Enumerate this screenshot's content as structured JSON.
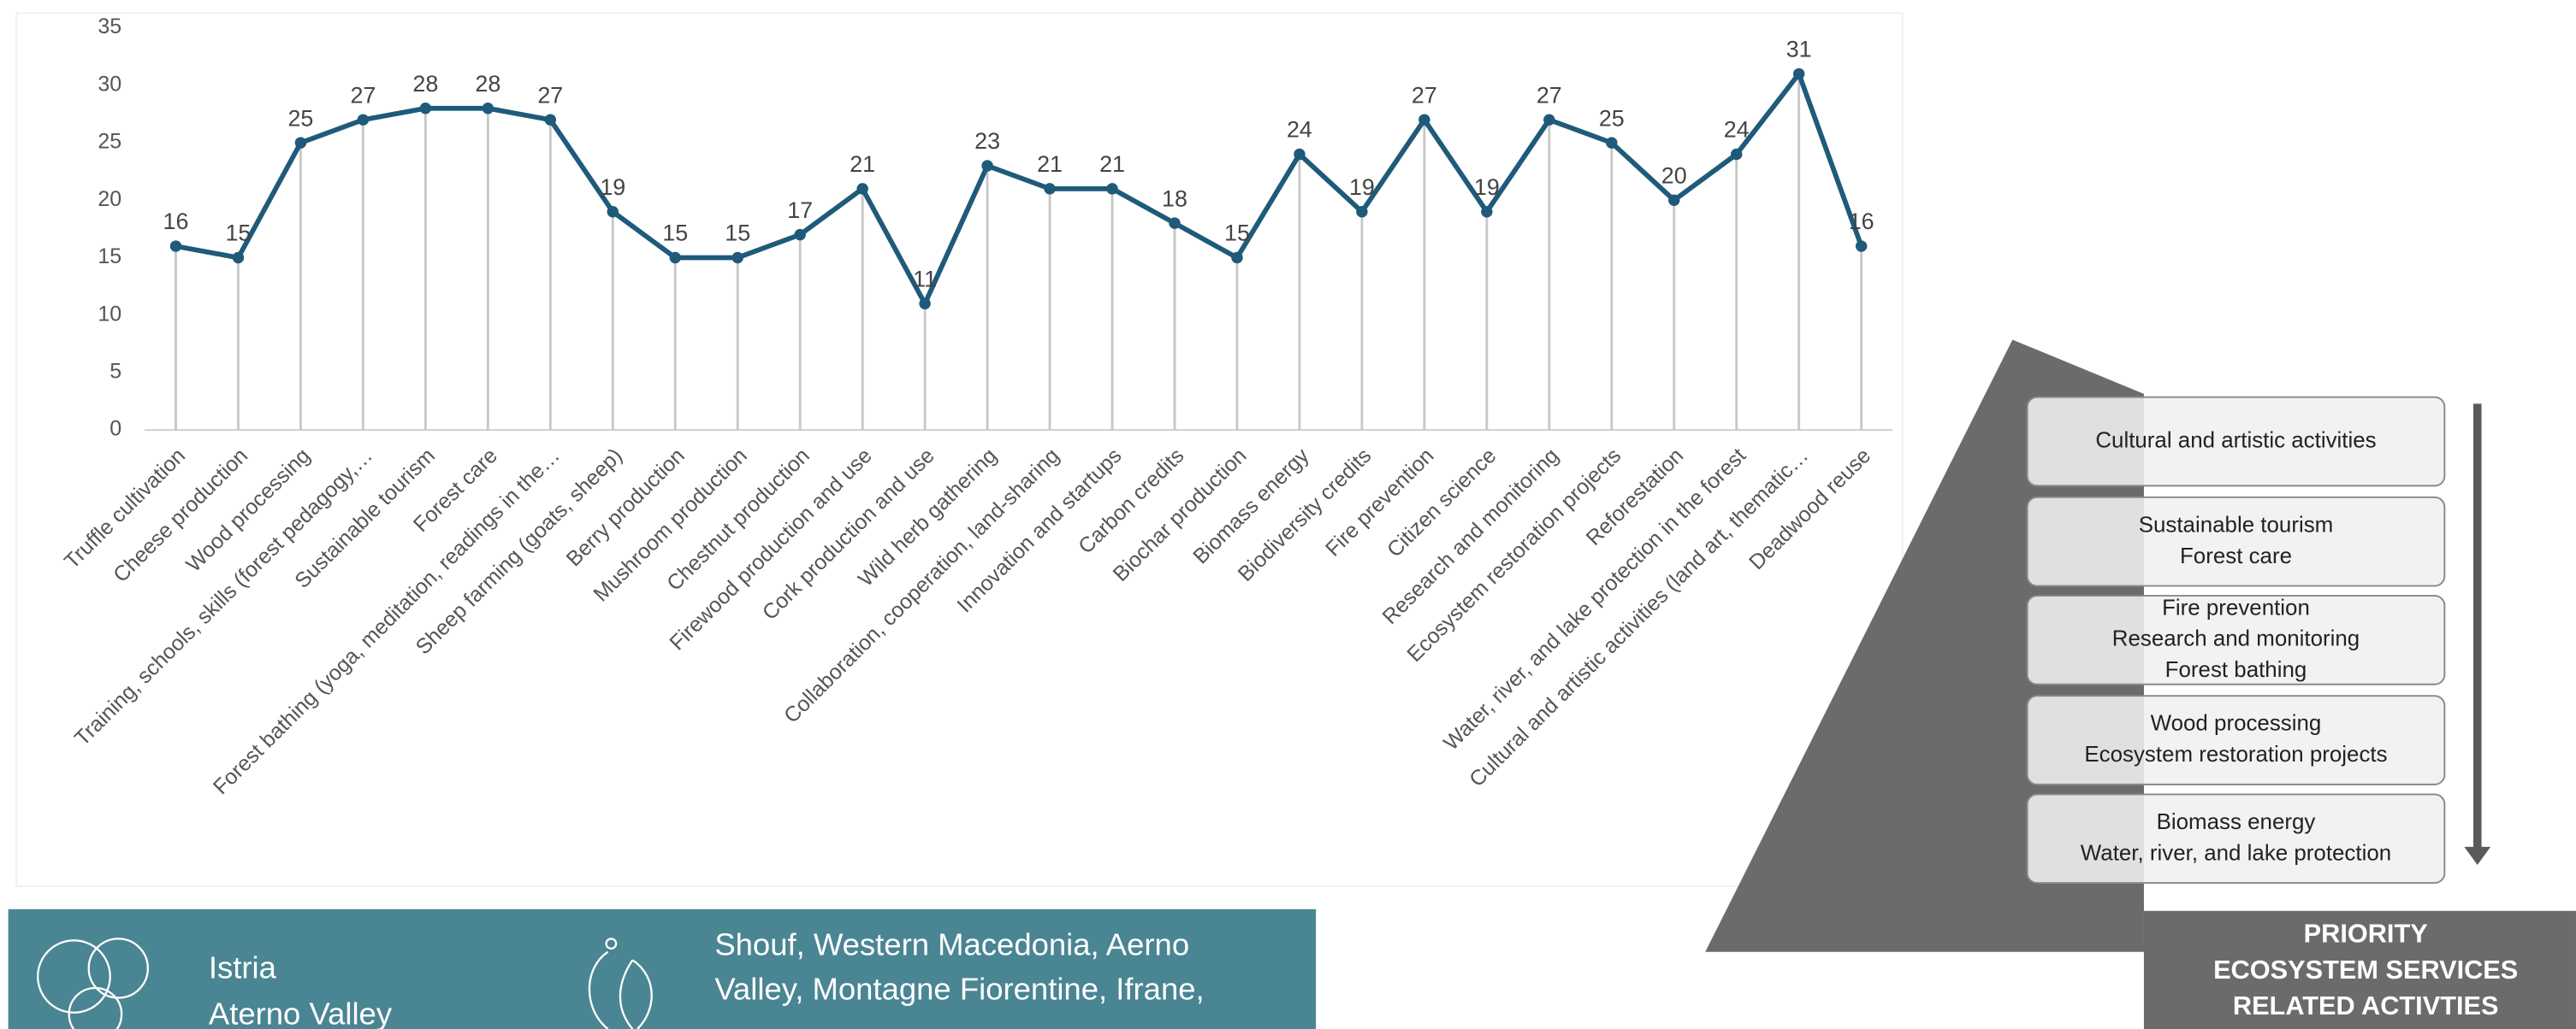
{
  "chart_data": {
    "type": "line",
    "categories": [
      "Truffle cultivation",
      "Cheese production",
      "Wood processing",
      "Training, schools, skills (forest pedagogy,…",
      "Sustainable tourism",
      "Forest care",
      "Forest bathing (yoga, meditation, readings in the…",
      "Sheep farming (goats, sheep)",
      "Berry production",
      "Mushroom production",
      "Chestnut production",
      "Firewood production and use",
      "Cork production and use",
      "Wild herb gathering",
      "Collaboration, cooperation, land-sharing",
      "Innovation and startups",
      "Carbon credits",
      "Biochar production",
      "Biomass energy",
      "Biodiversity credits",
      "Fire prevention",
      "Citizen science",
      "Research and monitoring",
      "Ecosystem restoration projects",
      "Reforestation",
      "Water, river, and lake protection in the forest",
      "Cultural and artistic activities (land art, thematic…",
      "Deadwood reuse"
    ],
    "values": [
      16,
      15,
      25,
      27,
      28,
      28,
      27,
      19,
      15,
      15,
      17,
      21,
      11,
      23,
      21,
      21,
      18,
      15,
      24,
      19,
      27,
      19,
      27,
      25,
      20,
      24,
      31,
      16
    ],
    "color": "#1f5a7a",
    "ylim": [
      0,
      35
    ],
    "yticks": [
      0,
      5,
      10,
      15,
      20,
      25,
      30,
      35
    ]
  },
  "pyramid": {
    "levels": [
      [
        "Cultural and artistic activities"
      ],
      [
        "Sustainable tourism",
        "Forest care"
      ],
      [
        "Fire prevention",
        "Research and monitoring",
        "Forest bathing"
      ],
      [
        "Wood processing",
        "Ecosystem restoration projects"
      ],
      [
        "Biomass energy",
        "Water, river, and lake protection"
      ]
    ],
    "caption": [
      "PRIORITY",
      "ECOSYSTEM SERVICES",
      "RELATED ACTIVTIES"
    ]
  },
  "banner": {
    "left": [
      "Istria",
      "Aterno Valley"
    ],
    "right": [
      "Shouf, Western Macedonia, Aerno",
      "Valley, Montagne Fiorentine, Ifrane,"
    ]
  }
}
